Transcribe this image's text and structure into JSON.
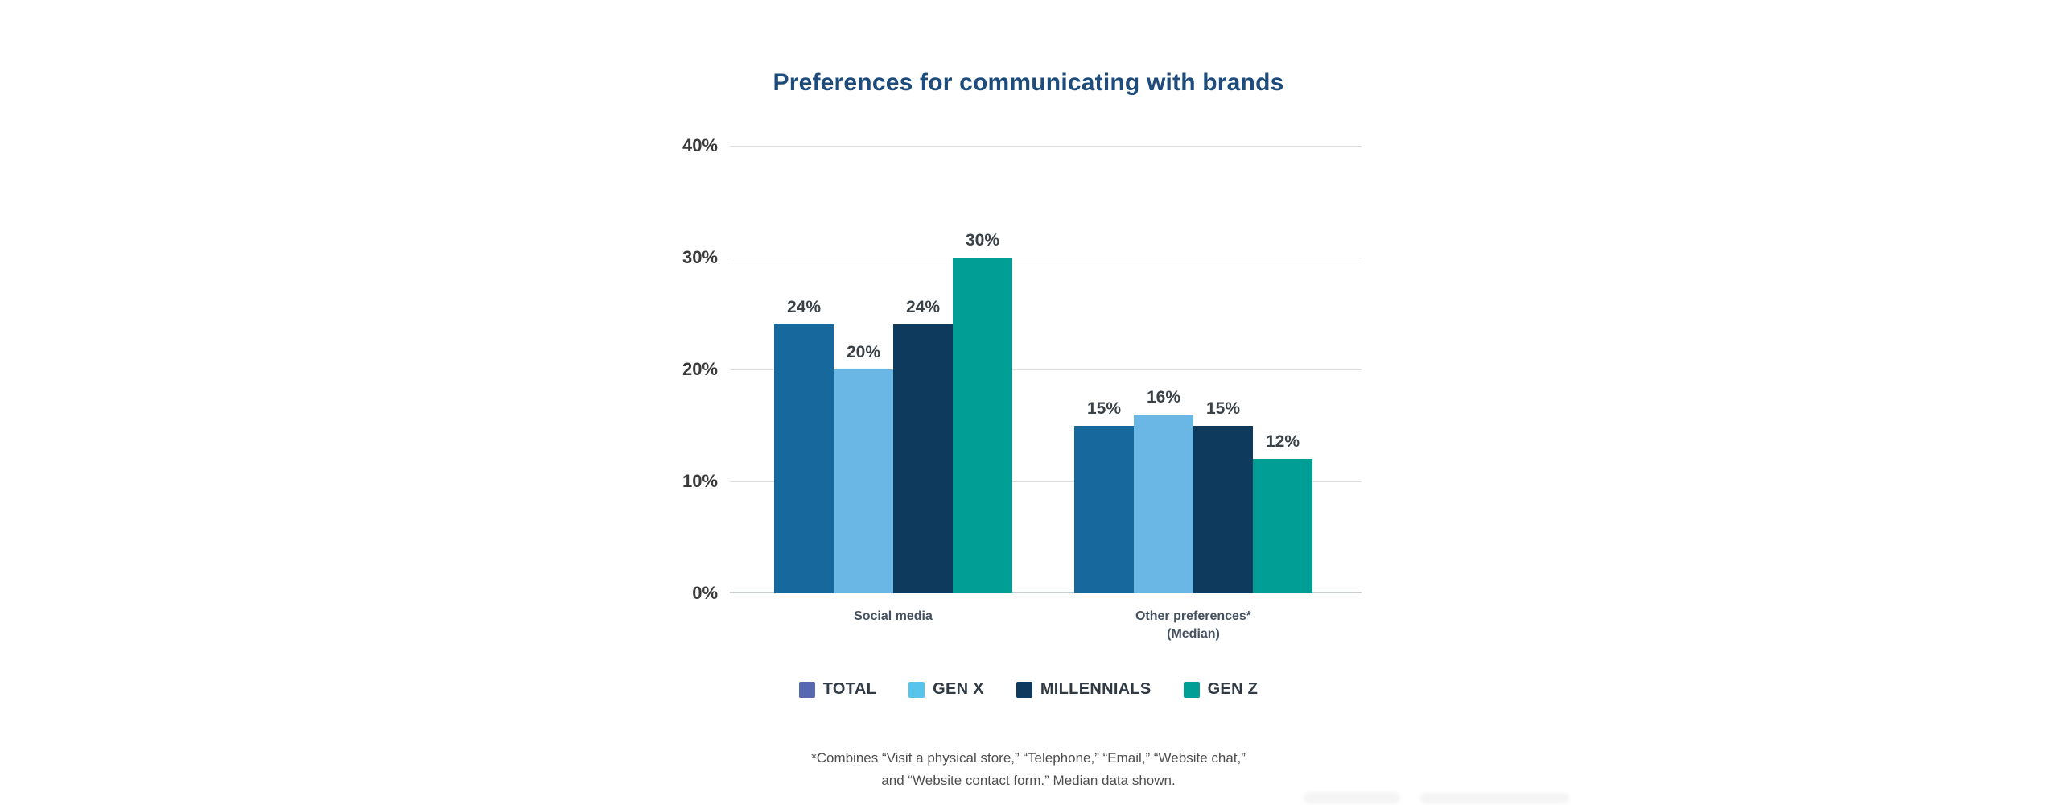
{
  "page": {
    "background": "#ffffff"
  },
  "title": {
    "text": "Preferences for communicating with brands",
    "color": "#1d4b7b"
  },
  "chart_data": {
    "type": "bar",
    "title": "Preferences for communicating with brands",
    "categories": [
      {
        "label": "Social media",
        "sublabel": ""
      },
      {
        "label": "Other preferences*",
        "sublabel": "(Median)"
      }
    ],
    "series": [
      {
        "name": "TOTAL",
        "bar_color": "#16689d",
        "legend_color": "#5767b0",
        "values": [
          24,
          15
        ]
      },
      {
        "name": "GEN X",
        "bar_color": "#6ab7e6",
        "legend_color": "#57c4ec",
        "values": [
          20,
          16
        ]
      },
      {
        "name": "MILLENNIALS",
        "bar_color": "#0e3a5d",
        "legend_color": "#0e3a5d",
        "values": [
          24,
          15
        ]
      },
      {
        "name": "GEN Z",
        "bar_color": "#009e94",
        "legend_color": "#009e94",
        "values": [
          30,
          12
        ]
      }
    ],
    "value_suffix": "%",
    "ylim": [
      0,
      40
    ],
    "yticks": [
      {
        "value": 40,
        "label": "40%"
      },
      {
        "value": 30,
        "label": "30%"
      },
      {
        "value": 20,
        "label": "20%"
      },
      {
        "value": 10,
        "label": "10%"
      },
      {
        "value": 0,
        "label": "0%"
      }
    ],
    "grid": true,
    "legend_position": "bottom",
    "xlabel": "",
    "ylabel": ""
  },
  "footnote": {
    "line1": "*Combines “Visit a physical store,” “Telephone,” “Email,” “Website chat,”",
    "line2": "and “Website contact form.” Median data shown."
  }
}
